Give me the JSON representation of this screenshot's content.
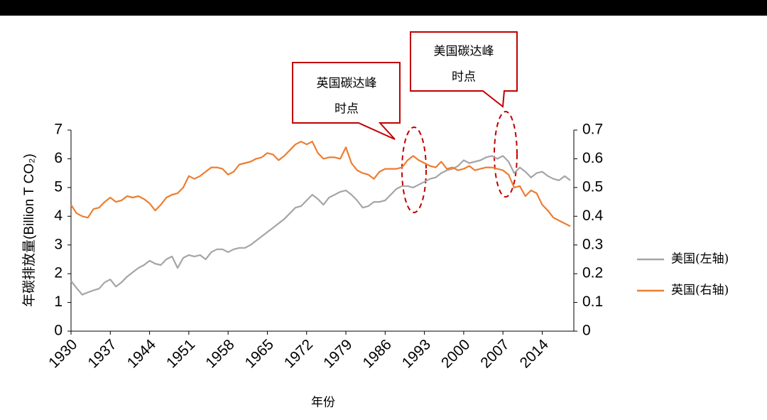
{
  "chart_data": {
    "type": "line",
    "x_label": "年份",
    "y_label": "年碳排放量(Billion T CO₂)",
    "x": [
      1930,
      1931,
      1932,
      1933,
      1934,
      1935,
      1936,
      1937,
      1938,
      1939,
      1940,
      1941,
      1942,
      1943,
      1944,
      1945,
      1946,
      1947,
      1948,
      1949,
      1950,
      1951,
      1952,
      1953,
      1954,
      1955,
      1956,
      1957,
      1958,
      1959,
      1960,
      1961,
      1962,
      1963,
      1964,
      1965,
      1966,
      1967,
      1968,
      1969,
      1970,
      1971,
      1972,
      1973,
      1974,
      1975,
      1976,
      1977,
      1978,
      1979,
      1980,
      1981,
      1982,
      1983,
      1984,
      1985,
      1986,
      1987,
      1988,
      1989,
      1990,
      1991,
      1992,
      1993,
      1994,
      1995,
      1996,
      1997,
      1998,
      1999,
      2000,
      2001,
      2002,
      2003,
      2004,
      2005,
      2006,
      2007,
      2008,
      2009,
      2010,
      2011,
      2012,
      2013,
      2014,
      2015,
      2016,
      2017,
      2018,
      2019
    ],
    "xlim": [
      1930,
      2019
    ],
    "xticks": [
      1930,
      1937,
      1944,
      1951,
      1958,
      1965,
      1972,
      1979,
      1986,
      1993,
      2000,
      2007,
      2014
    ],
    "ylim": [
      0,
      7
    ],
    "yticks": [
      0,
      1,
      2,
      3,
      4,
      5,
      6,
      7
    ],
    "y2lim": [
      0,
      0.7
    ],
    "y2ticks": [
      {
        "value": 0,
        "label": "0"
      },
      0.1,
      0.2,
      0.3,
      0.4,
      0.5,
      0.6,
      0.7
    ],
    "legend": "right",
    "series": [
      {
        "name": "美国(左轴)",
        "color": "#a5a5a5",
        "axis": "y",
        "values": [
          1.75,
          1.5,
          1.27,
          1.35,
          1.42,
          1.48,
          1.7,
          1.8,
          1.55,
          1.7,
          1.9,
          2.05,
          2.2,
          2.3,
          2.45,
          2.35,
          2.3,
          2.5,
          2.6,
          2.2,
          2.55,
          2.65,
          2.6,
          2.65,
          2.5,
          2.75,
          2.85,
          2.85,
          2.75,
          2.85,
          2.9,
          2.9,
          3.0,
          3.15,
          3.3,
          3.45,
          3.6,
          3.75,
          3.9,
          4.1,
          4.3,
          4.35,
          4.55,
          4.75,
          4.6,
          4.4,
          4.65,
          4.75,
          4.85,
          4.9,
          4.75,
          4.55,
          4.3,
          4.35,
          4.5,
          4.5,
          4.55,
          4.75,
          4.95,
          5.05,
          5.05,
          5.0,
          5.1,
          5.2,
          5.3,
          5.35,
          5.5,
          5.6,
          5.65,
          5.75,
          5.95,
          5.85,
          5.9,
          5.95,
          6.05,
          6.1,
          6.0,
          6.1,
          5.9,
          5.5,
          5.7,
          5.55,
          5.35,
          5.5,
          5.55,
          5.4,
          5.3,
          5.25,
          5.4,
          5.25
        ]
      },
      {
        "name": "英国(右轴)",
        "color": "#ed7d31",
        "axis": "y2",
        "values": [
          0.44,
          0.41,
          0.4,
          0.395,
          0.425,
          0.43,
          0.45,
          0.465,
          0.45,
          0.455,
          0.47,
          0.465,
          0.47,
          0.46,
          0.445,
          0.42,
          0.44,
          0.465,
          0.475,
          0.48,
          0.5,
          0.54,
          0.53,
          0.54,
          0.555,
          0.57,
          0.57,
          0.565,
          0.545,
          0.555,
          0.58,
          0.585,
          0.59,
          0.6,
          0.605,
          0.62,
          0.615,
          0.595,
          0.61,
          0.63,
          0.65,
          0.66,
          0.65,
          0.66,
          0.62,
          0.6,
          0.605,
          0.605,
          0.6,
          0.64,
          0.585,
          0.56,
          0.55,
          0.545,
          0.53,
          0.555,
          0.565,
          0.565,
          0.565,
          0.57,
          0.595,
          0.61,
          0.595,
          0.585,
          0.575,
          0.57,
          0.59,
          0.565,
          0.57,
          0.56,
          0.565,
          0.575,
          0.56,
          0.565,
          0.57,
          0.57,
          0.565,
          0.56,
          0.545,
          0.5,
          0.505,
          0.47,
          0.49,
          0.48,
          0.44,
          0.42,
          0.395,
          0.385,
          0.375,
          0.365
        ]
      }
    ],
    "annotations": [
      {
        "lines": [
          "英国碳达峰",
          "时点"
        ]
      },
      {
        "lines": [
          "美国碳达峰",
          "时点"
        ]
      }
    ]
  }
}
